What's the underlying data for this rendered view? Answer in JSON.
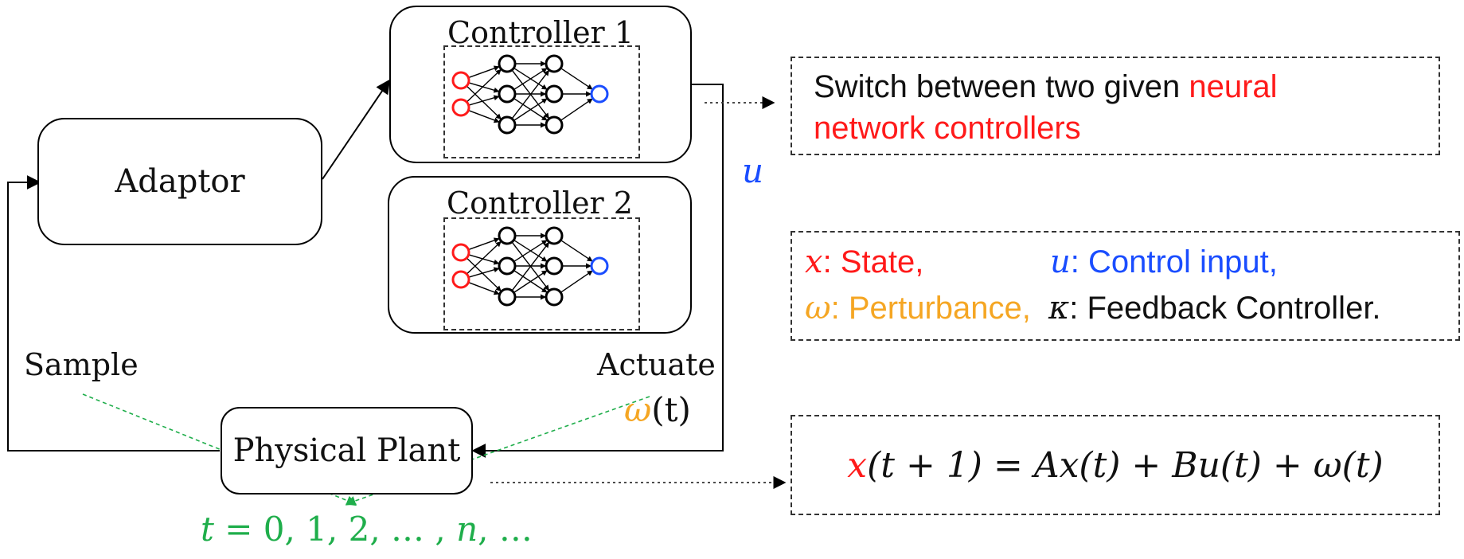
{
  "colors": {
    "red": "#ff1a1a",
    "blue": "#1a4dff",
    "orange": "#f5a623",
    "green": "#1fae4b",
    "black": "#111111"
  },
  "blocks": {
    "adaptor": "Adaptor",
    "controller1": "Controller 1",
    "controller2": "Controller 2",
    "plant": "Physical Plant"
  },
  "signals": {
    "sample": "Sample",
    "actuate": "Actuate",
    "u": "u",
    "omega_sym": "ω",
    "omega_arg": "(t)",
    "time_t": "t",
    "time_seq": " = 0, 1, 2, … , ",
    "time_n": "n",
    "time_end": ", …"
  },
  "notes": {
    "switch_black": "Switch between two given ",
    "switch_red_1": "neural",
    "switch_red_2": "network controllers",
    "legend": {
      "x_sym": "x",
      "x_text": ": State,",
      "u_sym": "u",
      "u_text": ": Control input,",
      "w_sym": "ω",
      "w_text": ": Perturbance,",
      "k_sym": "κ",
      "k_text": ": Feedback Controller."
    },
    "equation": {
      "lhs_x": "x",
      "lhs_rest": "(t + 1) = Ax(t) + Bu(t) + ω(t)"
    }
  },
  "network": {
    "inputs": 2,
    "hidden_layers": [
      3,
      3
    ],
    "outputs": 1
  }
}
